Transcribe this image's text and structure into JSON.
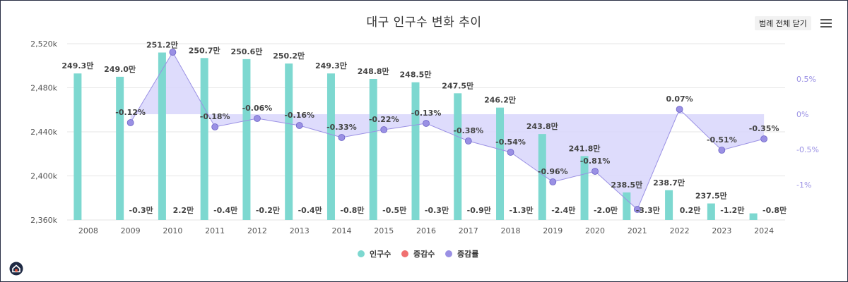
{
  "title": "대구 인구수 변화 추이",
  "legend_toggle_label": "범례 전체 닫기",
  "icons": {
    "menu": "hamburger-menu-icon",
    "home": "home-icon"
  },
  "colors": {
    "population": "#7dd8d0",
    "change": "#f07070",
    "rate": "#9a90e4",
    "rate_area": "#d8d6fb"
  },
  "chart_data": {
    "type": "bar",
    "title": "대구 인구수 변화 추이",
    "categories": [
      "2008",
      "2009",
      "2010",
      "2011",
      "2012",
      "2013",
      "2014",
      "2015",
      "2016",
      "2017",
      "2018",
      "2019",
      "2020",
      "2021",
      "2022",
      "2023",
      "2024"
    ],
    "series": [
      {
        "name": "인구수",
        "type": "bar",
        "axis": "left",
        "values": [
          2493000,
          2490000,
          2512000,
          2507000,
          2506000,
          2502000,
          2493000,
          2488000,
          2485000,
          2475000,
          2462000,
          2438000,
          2418000,
          2385000,
          2387000,
          2375000,
          2366000
        ],
        "labels": [
          "249.3만",
          "249.0만",
          "251.2만",
          "250.7만",
          "250.6만",
          "250.2만",
          "249.3만",
          "248.8만",
          "248.5만",
          "247.5만",
          "246.2만",
          "243.8만",
          "241.8만",
          "238.5만",
          "238.7만",
          "237.5만",
          "236.6만"
        ],
        "label_shown": [
          true,
          true,
          true,
          true,
          true,
          true,
          true,
          true,
          true,
          true,
          true,
          true,
          true,
          true,
          true,
          true,
          false
        ]
      },
      {
        "name": "증감수",
        "type": "bar",
        "axis": "left",
        "values": [
          null,
          -3000,
          22000,
          -4000,
          -2000,
          -4000,
          -8000,
          -5000,
          -3000,
          -9000,
          -13000,
          -24000,
          -20000,
          -33000,
          2000,
          -12000,
          -8000
        ],
        "labels": [
          "",
          "-0.3만",
          "2.2만",
          "-0.4만",
          "-0.2만",
          "-0.4만",
          "-0.8만",
          "-0.5만",
          "-0.3만",
          "-0.9만",
          "-1.3만",
          "-2.4만",
          "-2.0만",
          "-3.3만",
          "0.2만",
          "-1.2만",
          "-0.8만"
        ]
      },
      {
        "name": "증감률",
        "type": "area",
        "axis": "right",
        "values": [
          null,
          -0.12,
          0.88,
          -0.18,
          -0.06,
          -0.16,
          -0.33,
          -0.22,
          -0.13,
          -0.38,
          -0.54,
          -0.96,
          -0.81,
          -1.35,
          0.07,
          -0.51,
          -0.35
        ],
        "labels": [
          "",
          "-0.12%",
          "",
          "-0.18%",
          "-0.06%",
          "-0.16%",
          "-0.33%",
          "-0.22%",
          "-0.13%",
          "-0.38%",
          "-0.54%",
          "-0.96%",
          "-0.81%",
          "",
          "0.07%",
          "-0.51%",
          "-0.35%"
        ]
      }
    ],
    "y_left": {
      "min": 2360000,
      "max": 2520000,
      "ticks": [
        2360000,
        2400000,
        2440000,
        2480000,
        2520000
      ],
      "tick_labels": [
        "2,360k",
        "2,400k",
        "2,440k",
        "2,480k",
        "2,520k"
      ]
    },
    "y_right": {
      "min": -1.5,
      "max": 1.0,
      "ticks": [
        0.5,
        0,
        -0.5,
        -1
      ],
      "tick_labels": [
        "0.5%",
        "0%",
        "-0.5%",
        "-1%"
      ]
    },
    "legend": [
      "인구수",
      "증감수",
      "증감률"
    ],
    "legend_position": "bottom-center",
    "grid": true
  }
}
